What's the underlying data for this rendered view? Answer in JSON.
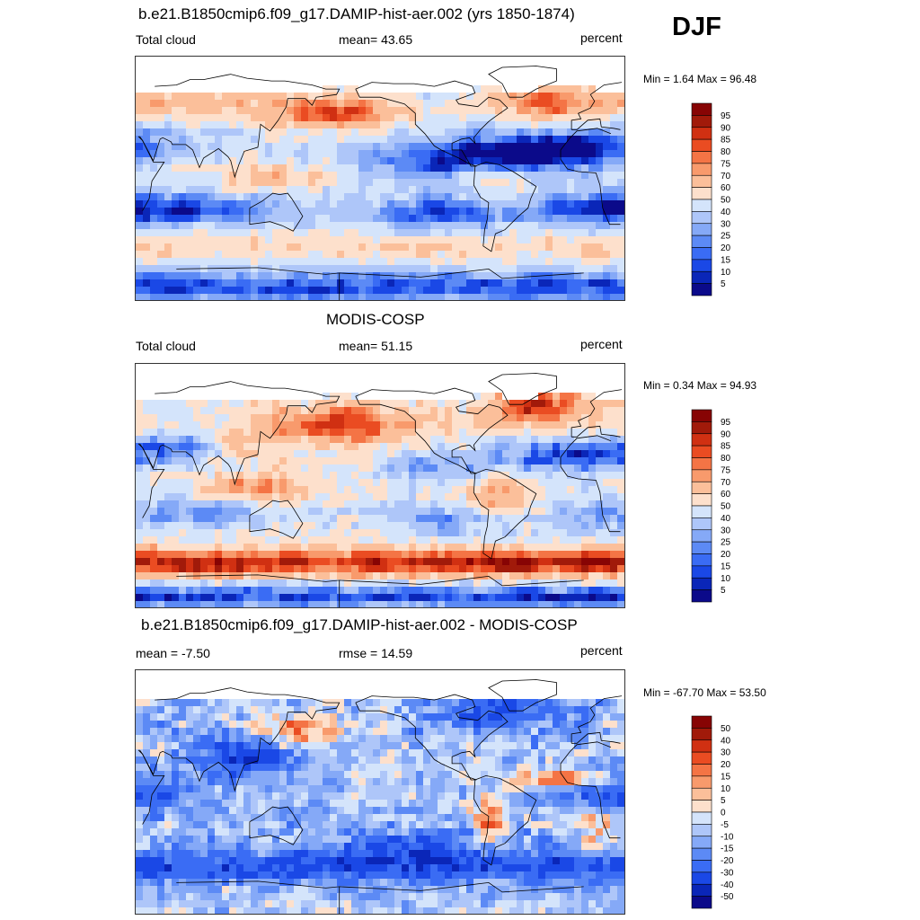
{
  "season": "DJF",
  "panels": [
    {
      "id": "model",
      "title": "b.e21.B1850cmip6.f09_g17.DAMIP-hist-aer.002 (yrs 1850-1874)",
      "left_label": "Total cloud",
      "center_label": "mean=  43.65",
      "right_label": "percent",
      "minmax": "Min =   1.64 Max =  96.48",
      "field": "model"
    },
    {
      "id": "obs",
      "title": "MODIS-COSP",
      "left_label": "Total cloud",
      "center_label": "mean=  51.15",
      "right_label": "percent",
      "minmax": "Min =   0.34 Max =  94.93",
      "field": "obs"
    },
    {
      "id": "diff",
      "title": "b.e21.B1850cmip6.f09_g17.DAMIP-hist-aer.002 - MODIS-COSP",
      "left_label": "mean =  -7.50",
      "center_label": "rmse =  14.59",
      "right_label": "percent",
      "minmax": "Min = -67.70 Max =  53.50",
      "field": "diff"
    }
  ],
  "chart_data": [
    {
      "type": "heatmap",
      "title": "b.e21.B1850cmip6.f09_g17.DAMIP-hist-aer.002 (yrs 1850-1874)",
      "variable": "Total cloud",
      "units": "percent",
      "mean": 43.65,
      "min": 1.64,
      "max": 96.48,
      "colorbar_levels": [
        5,
        10,
        15,
        20,
        25,
        30,
        40,
        50,
        60,
        70,
        75,
        80,
        85,
        90,
        95
      ]
    },
    {
      "type": "heatmap",
      "title": "MODIS-COSP",
      "variable": "Total cloud",
      "units": "percent",
      "mean": 51.15,
      "min": 0.34,
      "max": 94.93,
      "colorbar_levels": [
        5,
        10,
        15,
        20,
        25,
        30,
        40,
        50,
        60,
        70,
        75,
        80,
        85,
        90,
        95
      ]
    },
    {
      "type": "heatmap",
      "title": "b.e21.B1850cmip6.f09_g17.DAMIP-hist-aer.002 - MODIS-COSP",
      "units": "percent",
      "mean": -7.5,
      "rmse": 14.59,
      "min": -67.7,
      "max": 53.5,
      "colorbar_levels": [
        -50,
        -40,
        -30,
        -20,
        -15,
        -10,
        -5,
        0,
        5,
        10,
        15,
        20,
        30,
        40,
        50
      ]
    }
  ],
  "palette": [
    "#0b0a8a",
    "#0a26b8",
    "#1a48e6",
    "#3a6cf4",
    "#5c8af5",
    "#85a9f7",
    "#aec6f9",
    "#d4e4fb",
    "#ffffff",
    "#fde0cc",
    "#fbbf9a",
    "#f89a6c",
    "#f47445",
    "#ea4c22",
    "#d03012",
    "#a11a0a",
    "#870404"
  ],
  "land_mask_color": "#ffffff",
  "coast_color": "#000000"
}
